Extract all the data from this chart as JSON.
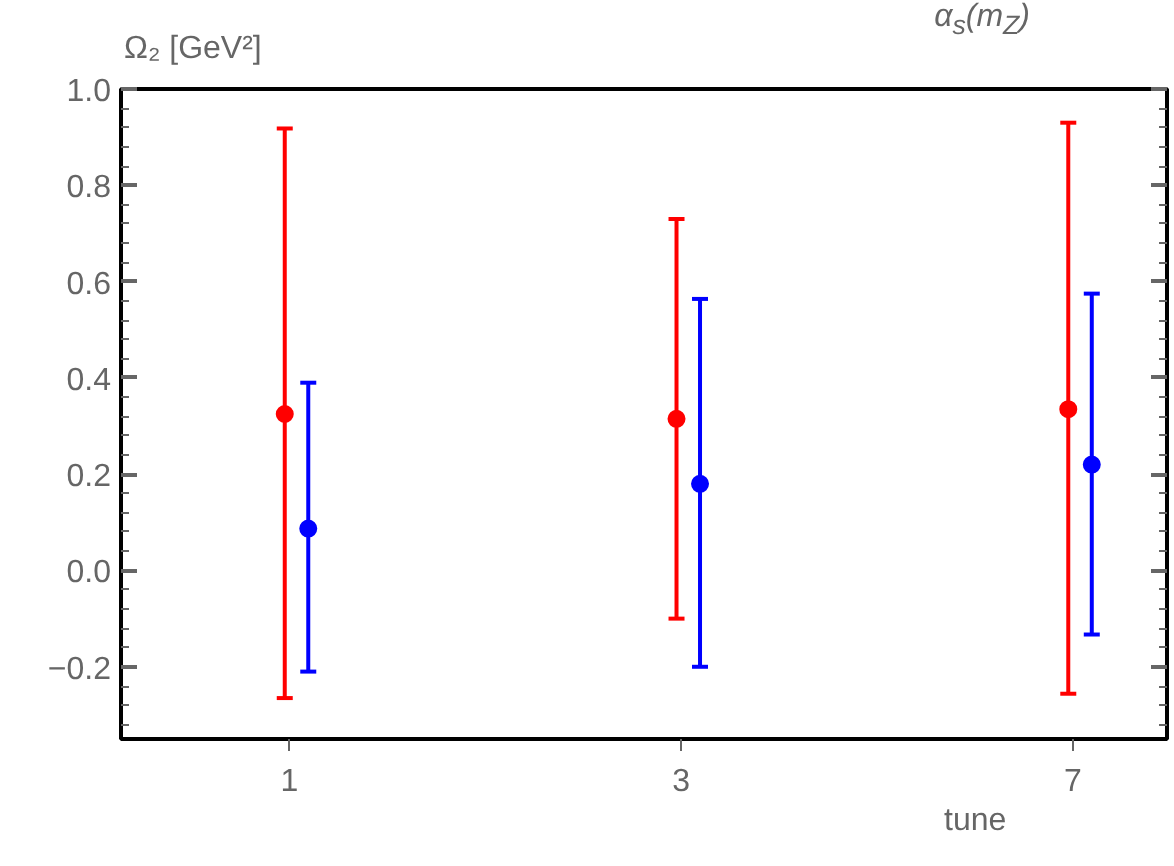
{
  "chart_data": {
    "type": "scatter",
    "ylabel": "Ω₂ [GeV²]",
    "xlabel": "tune",
    "annotations": [
      "α$_{s}$(m$_{Z}$)"
    ],
    "categories": [
      "1",
      "3",
      "7"
    ],
    "series": [
      {
        "color": "#ff0000",
        "values": [
          0.325,
          0.315,
          0.335
        ],
        "errors": [
          [
            0.59,
            0.593
          ],
          [
            0.415,
            0.415
          ],
          [
            0.591,
            0.595
          ]
        ]
      },
      {
        "color": "#0000ff",
        "values": [
          0.087,
          0.18,
          0.22
        ],
        "errors": [
          [
            0.297,
            0.303
          ],
          [
            0.38,
            0.384
          ],
          [
            0.353,
            0.355
          ]
        ]
      }
    ],
    "ylim": [
      -0.35,
      1.0
    ],
    "yticks": [
      {
        "value": -0.2,
        "label": "−0.2"
      },
      {
        "value": 0.0,
        "label": "0.0"
      },
      {
        "value": 0.2,
        "label": "0.2"
      },
      {
        "value": 0.4,
        "label": "0.4"
      },
      {
        "value": 0.6,
        "label": "0.6"
      },
      {
        "value": 0.8,
        "label": "0.8"
      },
      {
        "value": 1.0,
        "label": "1.0"
      }
    ],
    "marker": "circle",
    "grid": false
  }
}
